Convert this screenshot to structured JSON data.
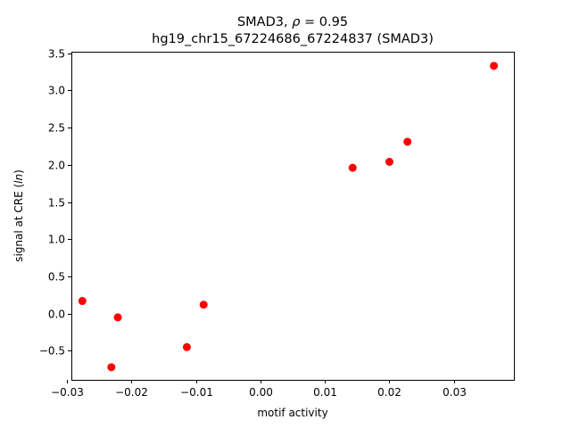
{
  "chart_data": {
    "type": "scatter",
    "title_line1_prefix": "SMAD3, ",
    "title_rho_symbol": "ρ",
    "title_rho_value": " = 0.95",
    "title_line2": "hg19_chr15_67224686_67224837 (SMAD3)",
    "xlabel": "motif activity",
    "ylabel_prefix": "signal at CRE (",
    "ylabel_italic": "ln",
    "ylabel_suffix": ")",
    "xlim": [
      -0.0293,
      0.0393
    ],
    "ylim": [
      -0.89,
      3.52
    ],
    "xticks": [
      {
        "value": -0.03,
        "label": "−0.03"
      },
      {
        "value": -0.02,
        "label": "−0.02"
      },
      {
        "value": -0.01,
        "label": "−0.01"
      },
      {
        "value": 0.0,
        "label": "0.00"
      },
      {
        "value": 0.01,
        "label": "0.01"
      },
      {
        "value": 0.02,
        "label": "0.02"
      },
      {
        "value": 0.03,
        "label": "0.03"
      }
    ],
    "yticks": [
      {
        "value": -0.5,
        "label": "−0.5"
      },
      {
        "value": 0.0,
        "label": "0.0"
      },
      {
        "value": 0.5,
        "label": "0.5"
      },
      {
        "value": 1.0,
        "label": "1.0"
      },
      {
        "value": 1.5,
        "label": "1.5"
      },
      {
        "value": 2.0,
        "label": "2.0"
      },
      {
        "value": 2.5,
        "label": "2.5"
      },
      {
        "value": 3.0,
        "label": "3.0"
      },
      {
        "value": 3.5,
        "label": "3.5"
      }
    ],
    "grid": false,
    "marker_color": "#ff0000",
    "series": [
      {
        "points": [
          {
            "x": -0.0276,
            "y": 0.17
          },
          {
            "x": -0.0221,
            "y": -0.05
          },
          {
            "x": -0.0231,
            "y": -0.72
          },
          {
            "x": -0.0114,
            "y": -0.45
          },
          {
            "x": -0.0088,
            "y": 0.12
          },
          {
            "x": 0.0143,
            "y": 1.96
          },
          {
            "x": 0.02,
            "y": 2.04
          },
          {
            "x": 0.0228,
            "y": 2.31
          },
          {
            "x": 0.0362,
            "y": 3.33
          }
        ]
      }
    ]
  }
}
